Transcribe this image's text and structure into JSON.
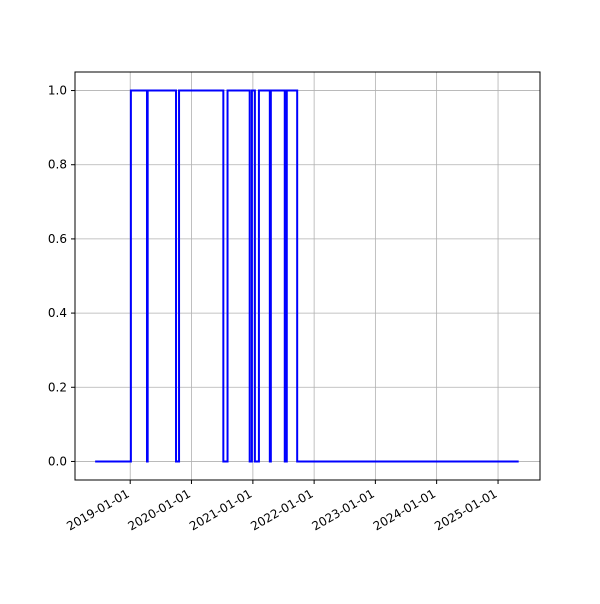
{
  "chart_data": {
    "type": "step",
    "x": [
      "2018-06-06",
      "2019-01-05",
      "2019-04-11",
      "2019-04-15",
      "2019-10-01",
      "2019-10-19",
      "2020-07-09",
      "2020-08-03",
      "2020-12-13",
      "2020-12-26",
      "2021-01-13",
      "2021-02-06",
      "2021-04-12",
      "2021-04-18",
      "2021-07-10",
      "2021-07-22",
      "2021-09-22",
      "2025-05-04"
    ],
    "values": [
      0,
      1,
      0,
      1,
      0,
      1,
      0,
      1,
      0,
      1,
      0,
      1,
      0,
      1,
      0,
      1,
      0,
      0
    ],
    "color": "#0000ff",
    "xlim": [
      "2018-02-06",
      "2025-09-08"
    ],
    "xticks": [
      "2019-01-01",
      "2020-01-01",
      "2021-01-01",
      "2022-01-01",
      "2023-01-01",
      "2024-01-01",
      "2025-01-01"
    ],
    "ylim": [
      -0.05,
      1.05
    ],
    "yticks": [
      {
        "value": 0,
        "label": "0.0"
      },
      {
        "value": 0.2,
        "label": "0.2"
      },
      {
        "value": 0.4,
        "label": "0.4"
      },
      {
        "value": 0.6,
        "label": "0.6"
      },
      {
        "value": 0.8,
        "label": "0.8"
      },
      {
        "value": 1,
        "label": "1.0"
      }
    ],
    "grid": true
  }
}
